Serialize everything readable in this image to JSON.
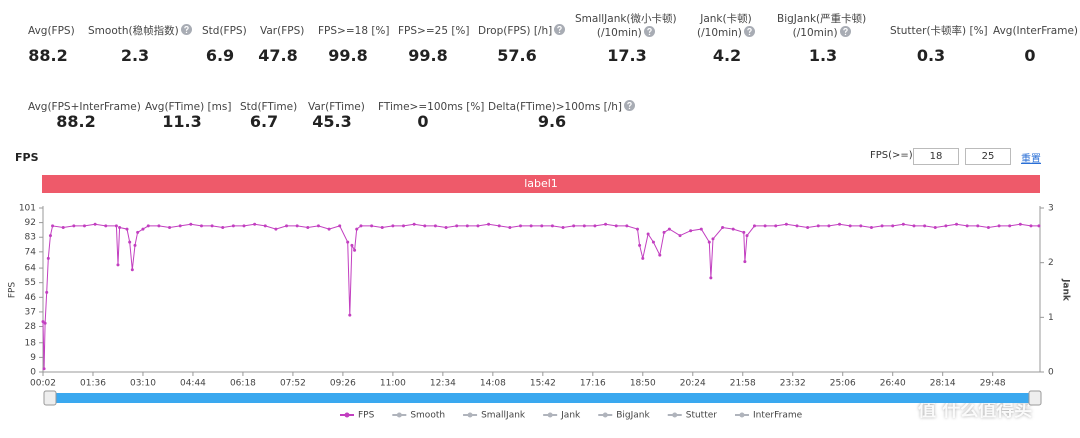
{
  "stats": [
    {
      "label": "Avg(FPS)",
      "value": 88.2,
      "help": false
    },
    {
      "label": "Smooth(稳帧指数)",
      "value": 2.3,
      "help": true
    },
    {
      "label": "Std(FPS)",
      "value": 6.9,
      "help": false
    },
    {
      "label": "Var(FPS)",
      "value": 47.8,
      "help": false
    },
    {
      "label": "FPS>=18 [%]",
      "value": 99.8,
      "help": false
    },
    {
      "label": "FPS>=25 [%]",
      "value": 99.8,
      "help": false
    },
    {
      "label": "Drop(FPS) [/h]",
      "value": 57.6,
      "help": true
    },
    {
      "label": "SmallJank(微小卡顿)\n(/10min)",
      "value": 17.3,
      "help": true
    },
    {
      "label": "Jank(卡顿)\n(/10min)",
      "value": 4.2,
      "help": true
    },
    {
      "label": "BigJank(严重卡顿)\n(/10min)",
      "value": 1.3,
      "help": true
    },
    {
      "label": "Stutter(卡顿率) [%]",
      "value": 0.3,
      "help": false
    },
    {
      "label": "Avg(InterFrame)",
      "value": 0,
      "help": false
    },
    {
      "label": "Avg(FPS+InterFrame)",
      "value": 88.2,
      "help": false
    },
    {
      "label": "Avg(FTime) [ms]",
      "value": 11.3,
      "help": false
    },
    {
      "label": "Std(FTime)",
      "value": 6.7,
      "help": false
    },
    {
      "label": "Var(FTime)",
      "value": 45.3,
      "help": false
    },
    {
      "label": "FTime>=100ms [%]",
      "value": 0,
      "help": false
    },
    {
      "label": "Delta(FTime)>100ms [/h]",
      "value": 9.6,
      "help": true
    }
  ],
  "threshold_label": "FPS(>=)",
  "thresholds": [
    18,
    25
  ],
  "reset": "重置",
  "band_label": "label1",
  "watermark": "值 什么值得买",
  "chart_data": {
    "type": "line",
    "title": "FPS",
    "y_label": "FPS",
    "y2_label": "Jank",
    "x": [
      2,
      4,
      6,
      9,
      12,
      16,
      20,
      40,
      60,
      80,
      100,
      120,
      140,
      143,
      146,
      160,
      165,
      170,
      175,
      180,
      190,
      200,
      220,
      240,
      260,
      280,
      300,
      320,
      340,
      360,
      380,
      400,
      420,
      440,
      460,
      480,
      500,
      520,
      540,
      560,
      575,
      579,
      583,
      588,
      592,
      600,
      620,
      640,
      660,
      680,
      700,
      720,
      740,
      760,
      780,
      800,
      820,
      840,
      860,
      880,
      900,
      920,
      940,
      960,
      980,
      1000,
      1020,
      1040,
      1060,
      1080,
      1100,
      1120,
      1124,
      1130,
      1140,
      1150,
      1162,
      1170,
      1180,
      1200,
      1220,
      1240,
      1255,
      1258,
      1262,
      1280,
      1300,
      1320,
      1322,
      1326,
      1340,
      1360,
      1380,
      1400,
      1420,
      1440,
      1460,
      1480,
      1500,
      1520,
      1540,
      1560,
      1580,
      1600,
      1620,
      1640,
      1660,
      1680,
      1700,
      1720,
      1740,
      1760,
      1780,
      1800,
      1820,
      1840,
      1860,
      1875
    ],
    "series": [
      {
        "name": "FPS",
        "color": "#c23fc0",
        "values": [
          31,
          2,
          30,
          49,
          70,
          84,
          90,
          89,
          90,
          90,
          91,
          90,
          90,
          66,
          89,
          88,
          80,
          63,
          78,
          86,
          88,
          90,
          90,
          89,
          90,
          91,
          90,
          90,
          89,
          90,
          90,
          91,
          90,
          88,
          90,
          90,
          89,
          90,
          88,
          90,
          80,
          35,
          78,
          75,
          88,
          90,
          90,
          89,
          90,
          90,
          91,
          90,
          90,
          89,
          90,
          90,
          90,
          91,
          90,
          89,
          90,
          90,
          90,
          90,
          89,
          90,
          90,
          90,
          91,
          90,
          90,
          88,
          78,
          70,
          85,
          80,
          72,
          86,
          88,
          84,
          87,
          88,
          80,
          58,
          82,
          89,
          88,
          86,
          68,
          84,
          90,
          90,
          90,
          91,
          90,
          89,
          90,
          90,
          91,
          90,
          90,
          89,
          90,
          90,
          91,
          90,
          90,
          89,
          90,
          91,
          90,
          90,
          89,
          90,
          90,
          91,
          90,
          90
        ]
      }
    ],
    "legend": [
      {
        "name": "FPS",
        "color": "#c23fc0"
      },
      {
        "name": "Smooth",
        "color": "#b0b4bc"
      },
      {
        "name": "SmallJank",
        "color": "#b0b4bc"
      },
      {
        "name": "Jank",
        "color": "#b0b4bc"
      },
      {
        "name": "BigJank",
        "color": "#b0b4bc"
      },
      {
        "name": "Stutter",
        "color": "#b0b4bc"
      },
      {
        "name": "InterFrame",
        "color": "#b0b4bc"
      }
    ],
    "xlim": [
      2,
      1877
    ],
    "xticks": [
      {
        "value": 2,
        "label": "00:02"
      },
      {
        "value": 96,
        "label": "01:36"
      },
      {
        "value": 190,
        "label": "03:10"
      },
      {
        "value": 284,
        "label": "04:44"
      },
      {
        "value": 378,
        "label": "06:18"
      },
      {
        "value": 472,
        "label": "07:52"
      },
      {
        "value": 566,
        "label": "09:26"
      },
      {
        "value": 660,
        "label": "11:00"
      },
      {
        "value": 754,
        "label": "12:34"
      },
      {
        "value": 848,
        "label": "14:08"
      },
      {
        "value": 942,
        "label": "15:42"
      },
      {
        "value": 1036,
        "label": "17:16"
      },
      {
        "value": 1130,
        "label": "18:50"
      },
      {
        "value": 1224,
        "label": "20:24"
      },
      {
        "value": 1318,
        "label": "21:58"
      },
      {
        "value": 1412,
        "label": "23:32"
      },
      {
        "value": 1506,
        "label": "25:06"
      },
      {
        "value": 1600,
        "label": "26:40"
      },
      {
        "value": 1694,
        "label": "28:14"
      },
      {
        "value": 1788,
        "label": "29:48"
      }
    ],
    "ylim": [
      0,
      101
    ],
    "yticks": [
      0,
      9,
      18,
      28,
      37,
      46,
      55,
      64,
      74,
      83,
      92,
      101
    ],
    "y2lim": [
      0,
      3
    ],
    "y2ticks": [
      0,
      1,
      2,
      3
    ]
  }
}
